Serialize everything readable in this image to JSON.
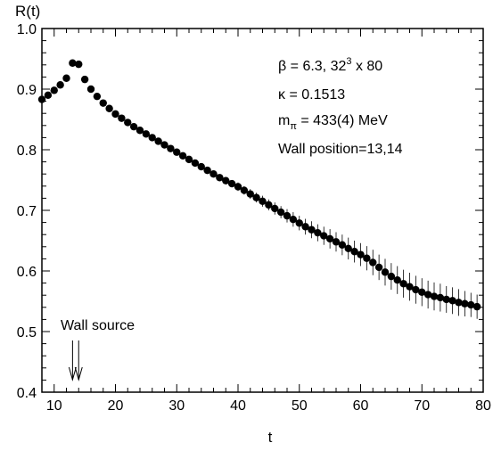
{
  "chart_data": {
    "type": "scatter",
    "title": "",
    "xlabel": "t",
    "ylabel": "R(t)",
    "xlim": [
      8,
      80
    ],
    "ylim": [
      0.4,
      1.0
    ],
    "x_ticks": [
      10,
      20,
      30,
      40,
      50,
      60,
      70,
      80
    ],
    "y_ticks": [
      0.4,
      0.5,
      0.6,
      0.7,
      0.8,
      0.9,
      1.0
    ],
    "x_tick_labels": [
      "10",
      "20",
      "30",
      "40",
      "50",
      "60",
      "70",
      "80"
    ],
    "y_tick_labels": [
      "0.4",
      "0.5",
      "0.6",
      "0.7",
      "0.8",
      "0.9",
      "1.0"
    ],
    "grid": false,
    "legend_placement": "top-right",
    "marker_color": "#000000",
    "annotations": {
      "beta": "β = 6.3,  32",
      "lattice_exp": "3",
      "lattice_tail": " x 80",
      "kappa": "κ = 0.1513",
      "mpi_m": "m",
      "mpi_sub": "π",
      "mpi_val": " = 433(4) MeV",
      "wall": "Wall position=13,14",
      "wall_source": "Wall source"
    },
    "wall_arrow_t": [
      13,
      14
    ],
    "series": [
      {
        "x": [
          8,
          9,
          10,
          11,
          12,
          13,
          14,
          15,
          16,
          17,
          18,
          19,
          20,
          21,
          22,
          23,
          24,
          25,
          26,
          27,
          28,
          29,
          30,
          31,
          32,
          33,
          34,
          35,
          36,
          37,
          38,
          39,
          40,
          41,
          42,
          43,
          44,
          45,
          46,
          47,
          48,
          49,
          50,
          51,
          52,
          53,
          54,
          55,
          56,
          57,
          58,
          59,
          60,
          61,
          62,
          63,
          64,
          65,
          66,
          67,
          68,
          69,
          70,
          71,
          72,
          73,
          74,
          75,
          76,
          77,
          78,
          79
        ],
        "y": [
          0.883,
          0.89,
          0.898,
          0.907,
          0.918,
          0.943,
          0.941,
          0.916,
          0.9,
          0.888,
          0.877,
          0.868,
          0.859,
          0.852,
          0.845,
          0.838,
          0.832,
          0.826,
          0.82,
          0.814,
          0.808,
          0.802,
          0.796,
          0.79,
          0.784,
          0.778,
          0.772,
          0.766,
          0.76,
          0.754,
          0.749,
          0.744,
          0.739,
          0.733,
          0.727,
          0.721,
          0.715,
          0.709,
          0.703,
          0.697,
          0.691,
          0.685,
          0.679,
          0.673,
          0.668,
          0.663,
          0.658,
          0.653,
          0.648,
          0.643,
          0.637,
          0.632,
          0.627,
          0.621,
          0.614,
          0.606,
          0.598,
          0.591,
          0.585,
          0.579,
          0.574,
          0.569,
          0.565,
          0.561,
          0.558,
          0.556,
          0.553,
          0.551,
          0.548,
          0.546,
          0.544,
          0.541
        ],
        "err": [
          0.001,
          0.001,
          0.001,
          0.001,
          0.001,
          0.001,
          0.001,
          0.001,
          0.001,
          0.001,
          0.001,
          0.001,
          0.001,
          0.001,
          0.002,
          0.002,
          0.002,
          0.002,
          0.002,
          0.002,
          0.003,
          0.003,
          0.003,
          0.003,
          0.004,
          0.004,
          0.004,
          0.005,
          0.005,
          0.005,
          0.006,
          0.006,
          0.007,
          0.007,
          0.008,
          0.008,
          0.009,
          0.009,
          0.01,
          0.01,
          0.011,
          0.012,
          0.012,
          0.013,
          0.014,
          0.014,
          0.015,
          0.016,
          0.016,
          0.017,
          0.018,
          0.018,
          0.019,
          0.02,
          0.021,
          0.021,
          0.022,
          0.022,
          0.023,
          0.023,
          0.023,
          0.023,
          0.023,
          0.023,
          0.023,
          0.023,
          0.022,
          0.022,
          0.022,
          0.021,
          0.02,
          0.02
        ]
      }
    ]
  }
}
